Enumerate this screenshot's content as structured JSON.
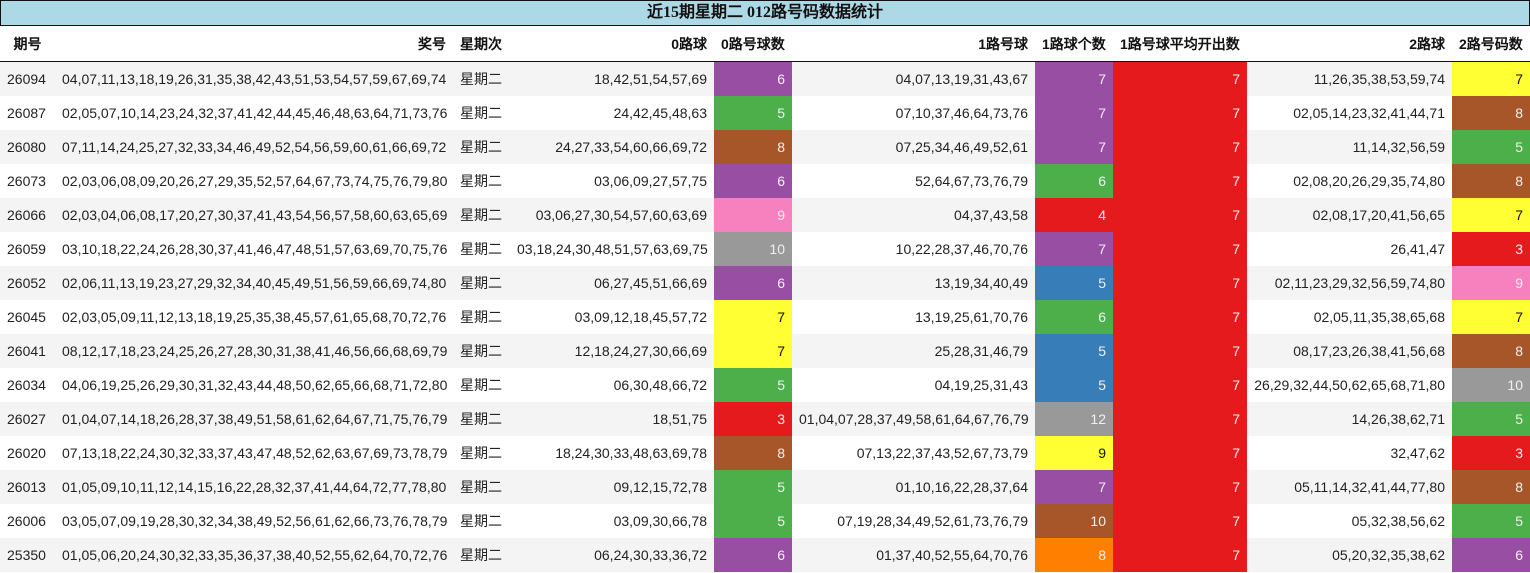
{
  "title": "近15期星期二 012路号码数据统计",
  "palette": {
    "3": "#e41a1c",
    "4": "#e41a1c",
    "5": "#4daf4a",
    "6": "#984ea3",
    "7": "#984ea3",
    "8": "#a65628",
    "9": "#f781bf",
    "10": "#999999",
    "12": "#999999",
    "yellow": "#ffff33",
    "blue": "#377eb8",
    "orange": "#ff7f00",
    "header_bg": "#add8e6"
  },
  "columns": [
    "期号",
    "奖号",
    "星期次",
    "0路球",
    "0路号球数",
    "1路号球",
    "1路球个数",
    "1路号球平均开出数",
    "2路球",
    "2路号码数"
  ],
  "rows": [
    {
      "period": "26094",
      "numbers": "04,07,11,13,18,19,26,31,35,38,42,43,51,53,54,57,59,67,69,74",
      "weekday": "星期二",
      "r0": "18,42,51,54,57,69",
      "r0_count": "6",
      "r0_color": "#984ea3",
      "r1": "04,07,13,19,31,43,67",
      "r1_count": "7",
      "r1_color": "#984ea3",
      "r1_avg": "7",
      "r2": "11,26,35,38,53,59,74",
      "r2_count": "7",
      "r2_color": "#ffff33"
    },
    {
      "period": "26087",
      "numbers": "02,05,07,10,14,23,24,32,37,41,42,44,45,46,48,63,64,71,73,76",
      "weekday": "星期二",
      "r0": "24,42,45,48,63",
      "r0_count": "5",
      "r0_color": "#4daf4a",
      "r1": "07,10,37,46,64,73,76",
      "r1_count": "7",
      "r1_color": "#984ea3",
      "r1_avg": "7",
      "r2": "02,05,14,23,32,41,44,71",
      "r2_count": "8",
      "r2_color": "#a65628"
    },
    {
      "period": "26080",
      "numbers": "07,11,14,24,25,27,32,33,34,46,49,52,54,56,59,60,61,66,69,72",
      "weekday": "星期二",
      "r0": "24,27,33,54,60,66,69,72",
      "r0_count": "8",
      "r0_color": "#a65628",
      "r1": "07,25,34,46,49,52,61",
      "r1_count": "7",
      "r1_color": "#984ea3",
      "r1_avg": "7",
      "r2": "11,14,32,56,59",
      "r2_count": "5",
      "r2_color": "#4daf4a"
    },
    {
      "period": "26073",
      "numbers": "02,03,06,08,09,20,26,27,29,35,52,57,64,67,73,74,75,76,79,80",
      "weekday": "星期二",
      "r0": "03,06,09,27,57,75",
      "r0_count": "6",
      "r0_color": "#984ea3",
      "r1": "52,64,67,73,76,79",
      "r1_count": "6",
      "r1_color": "#4daf4a",
      "r1_avg": "7",
      "r2": "02,08,20,26,29,35,74,80",
      "r2_count": "8",
      "r2_color": "#a65628"
    },
    {
      "period": "26066",
      "numbers": "02,03,04,06,08,17,20,27,30,37,41,43,54,56,57,58,60,63,65,69",
      "weekday": "星期二",
      "r0": "03,06,27,30,54,57,60,63,69",
      "r0_count": "9",
      "r0_color": "#f781bf",
      "r1": "04,37,43,58",
      "r1_count": "4",
      "r1_color": "#e41a1c",
      "r1_avg": "7",
      "r2": "02,08,17,20,41,56,65",
      "r2_count": "7",
      "r2_color": "#ffff33"
    },
    {
      "period": "26059",
      "numbers": "03,10,18,22,24,26,28,30,37,41,46,47,48,51,57,63,69,70,75,76",
      "weekday": "星期二",
      "r0": "03,18,24,30,48,51,57,63,69,75",
      "r0_count": "10",
      "r0_color": "#999999",
      "r1": "10,22,28,37,46,70,76",
      "r1_count": "7",
      "r1_color": "#984ea3",
      "r1_avg": "7",
      "r2": "26,41,47",
      "r2_count": "3",
      "r2_color": "#e41a1c"
    },
    {
      "period": "26052",
      "numbers": "02,06,11,13,19,23,27,29,32,34,40,45,49,51,56,59,66,69,74,80",
      "weekday": "星期二",
      "r0": "06,27,45,51,66,69",
      "r0_count": "6",
      "r0_color": "#984ea3",
      "r1": "13,19,34,40,49",
      "r1_count": "5",
      "r1_color": "#377eb8",
      "r1_avg": "7",
      "r2": "02,11,23,29,32,56,59,74,80",
      "r2_count": "9",
      "r2_color": "#f781bf"
    },
    {
      "period": "26045",
      "numbers": "02,03,05,09,11,12,13,18,19,25,35,38,45,57,61,65,68,70,72,76",
      "weekday": "星期二",
      "r0": "03,09,12,18,45,57,72",
      "r0_count": "7",
      "r0_color": "#ffff33",
      "r1": "13,19,25,61,70,76",
      "r1_count": "6",
      "r1_color": "#4daf4a",
      "r1_avg": "7",
      "r2": "02,05,11,35,38,65,68",
      "r2_count": "7",
      "r2_color": "#ffff33"
    },
    {
      "period": "26041",
      "numbers": "08,12,17,18,23,24,25,26,27,28,30,31,38,41,46,56,66,68,69,79",
      "weekday": "星期二",
      "r0": "12,18,24,27,30,66,69",
      "r0_count": "7",
      "r0_color": "#ffff33",
      "r1": "25,28,31,46,79",
      "r1_count": "5",
      "r1_color": "#377eb8",
      "r1_avg": "7",
      "r2": "08,17,23,26,38,41,56,68",
      "r2_count": "8",
      "r2_color": "#a65628"
    },
    {
      "period": "26034",
      "numbers": "04,06,19,25,26,29,30,31,32,43,44,48,50,62,65,66,68,71,72,80",
      "weekday": "星期二",
      "r0": "06,30,48,66,72",
      "r0_count": "5",
      "r0_color": "#4daf4a",
      "r1": "04,19,25,31,43",
      "r1_count": "5",
      "r1_color": "#377eb8",
      "r1_avg": "7",
      "r2": "26,29,32,44,50,62,65,68,71,80",
      "r2_count": "10",
      "r2_color": "#999999"
    },
    {
      "period": "26027",
      "numbers": "01,04,07,14,18,26,28,37,38,49,51,58,61,62,64,67,71,75,76,79",
      "weekday": "星期二",
      "r0": "18,51,75",
      "r0_count": "3",
      "r0_color": "#e41a1c",
      "r1": "01,04,07,28,37,49,58,61,64,67,76,79",
      "r1_count": "12",
      "r1_color": "#999999",
      "r1_avg": "7",
      "r2": "14,26,38,62,71",
      "r2_count": "5",
      "r2_color": "#4daf4a"
    },
    {
      "period": "26020",
      "numbers": "07,13,18,22,24,30,32,33,37,43,47,48,52,62,63,67,69,73,78,79",
      "weekday": "星期二",
      "r0": "18,24,30,33,48,63,69,78",
      "r0_count": "8",
      "r0_color": "#a65628",
      "r1": "07,13,22,37,43,52,67,73,79",
      "r1_count": "9",
      "r1_color": "#ffff33",
      "r1_avg": "7",
      "r2": "32,47,62",
      "r2_count": "3",
      "r2_color": "#e41a1c"
    },
    {
      "period": "26013",
      "numbers": "01,05,09,10,11,12,14,15,16,22,28,32,37,41,44,64,72,77,78,80",
      "weekday": "星期二",
      "r0": "09,12,15,72,78",
      "r0_count": "5",
      "r0_color": "#4daf4a",
      "r1": "01,10,16,22,28,37,64",
      "r1_count": "7",
      "r1_color": "#984ea3",
      "r1_avg": "7",
      "r2": "05,11,14,32,41,44,77,80",
      "r2_count": "8",
      "r2_color": "#a65628"
    },
    {
      "period": "26006",
      "numbers": "03,05,07,09,19,28,30,32,34,38,49,52,56,61,62,66,73,76,78,79",
      "weekday": "星期二",
      "r0": "03,09,30,66,78",
      "r0_count": "5",
      "r0_color": "#4daf4a",
      "r1": "07,19,28,34,49,52,61,73,76,79",
      "r1_count": "10",
      "r1_color": "#a65628",
      "r1_avg": "7",
      "r2": "05,32,38,56,62",
      "r2_count": "5",
      "r2_color": "#4daf4a"
    },
    {
      "period": "25350",
      "numbers": "01,05,06,20,24,30,32,33,35,36,37,38,40,52,55,62,64,70,72,76",
      "weekday": "星期二",
      "r0": "06,24,30,33,36,72",
      "r0_count": "6",
      "r0_color": "#984ea3",
      "r1": "01,37,40,52,55,64,70,76",
      "r1_count": "8",
      "r1_color": "#ff7f00",
      "r1_avg": "7",
      "r2": "05,20,32,35,38,62",
      "r2_count": "6",
      "r2_color": "#984ea3"
    }
  ],
  "avg_color": "#e41a1c"
}
